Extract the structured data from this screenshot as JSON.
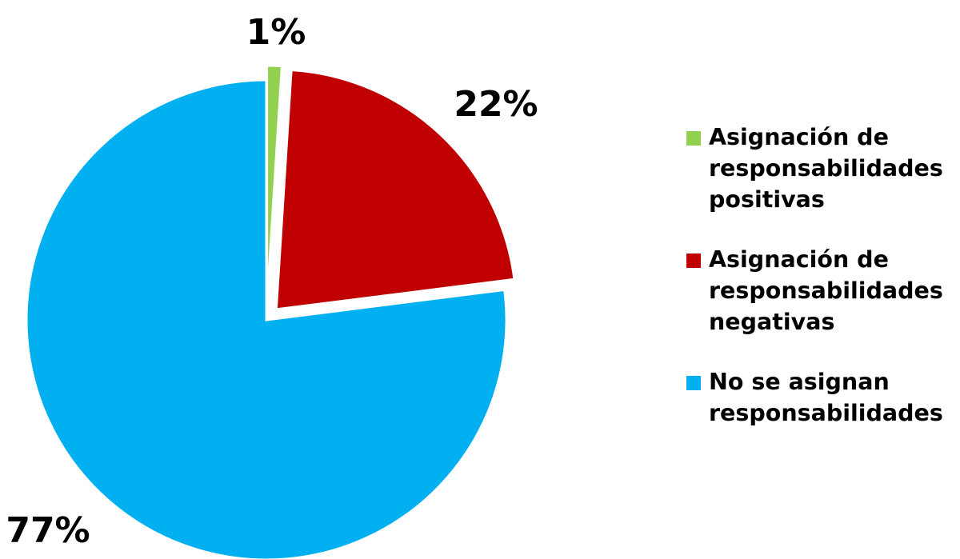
{
  "chart_data": {
    "type": "pie",
    "title": "",
    "slices": [
      {
        "label": "Asignación de responsabilidades positivas",
        "value": 1,
        "display": "1%",
        "color": "#92D050"
      },
      {
        "label": "Asignación de responsabilidades negativas",
        "value": 22,
        "display": "22%",
        "color": "#C00000"
      },
      {
        "label": "No se asignan responsabilidades",
        "value": 77,
        "display": "77%",
        "color": "#00B0F0"
      }
    ],
    "legend_position": "right",
    "exploded": true
  },
  "legend": {
    "items": [
      {
        "lines": [
          "Asignación de",
          "responsabilidades",
          "positivas"
        ],
        "color": "#92D050"
      },
      {
        "lines": [
          "Asignación de",
          "responsabilidades",
          "negativas"
        ],
        "color": "#C00000"
      },
      {
        "lines": [
          "No se asignan",
          "responsabilidades"
        ],
        "color": "#00B0F0"
      }
    ]
  }
}
